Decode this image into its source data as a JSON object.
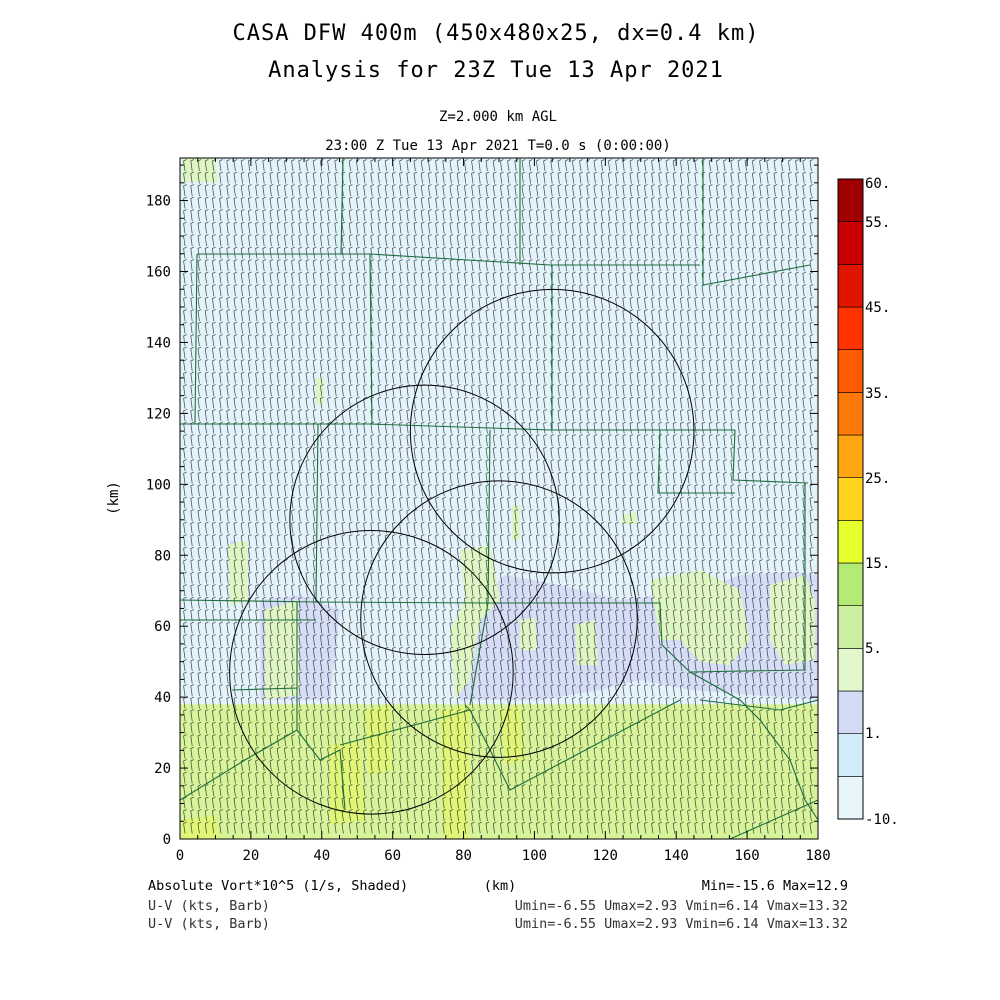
{
  "header": {
    "title_line1": "CASA DFW 400m (450x480x25, dx=0.4 km)",
    "title_line2": "Analysis for 23Z Tue 13 Apr 2021",
    "level": "Z=2.000 km AGL",
    "time": "23:00 Z Tue 13 Apr 2021   T=0.0 s (0:00:00)"
  },
  "footer": {
    "field_label": "Absolute Vort*10^5 (1/s, Shaded)",
    "xunit": "(km)",
    "minmax": "Min=-15.6 Max=12.9",
    "wind_label_1": "U-V (kts, Barb)",
    "wind_stats_1": "Umin=-6.55 Umax=2.93 Vmin=6.14 Vmax=13.32",
    "wind_label_2": "U-V (kts, Barb)",
    "wind_stats_2": "Umin=-6.55 Umax=2.93 Vmin=6.14 Vmax=13.32"
  },
  "colorbar": {
    "tick_labels": [
      "60.",
      "55.",
      "45.",
      "35.",
      "25.",
      "15.",
      "5.",
      "1.",
      "-10."
    ],
    "colors": [
      "#e6f6fb",
      "#d3ecfa",
      "#d2daf5",
      "#e1f7cc",
      "#cdf0a0",
      "#b4eb76",
      "#e6ff2c",
      "#ffd21e",
      "#ffa614",
      "#ff780a",
      "#ff5a00",
      "#ff3200",
      "#e11400",
      "#c80000",
      "#a00000"
    ]
  },
  "chart_data": {
    "type": "heatmap",
    "title": "CASA DFW 400m (450x480x25, dx=0.4 km)",
    "subtitle": "Analysis for 23Z Tue 13 Apr 2021",
    "xlabel": "(km)",
    "ylabel": "(km)",
    "xlim": [
      0,
      180
    ],
    "ylim": [
      0,
      192
    ],
    "xticks": [
      "0",
      "20",
      "40",
      "60",
      "80",
      "100",
      "120",
      "140",
      "160",
      "180"
    ],
    "yticks": [
      "0",
      "20",
      "40",
      "60",
      "80",
      "100",
      "120",
      "140",
      "160",
      "180"
    ],
    "field": "Absolute Vort*10^5 (1/s, Shaded)",
    "min": -15.6,
    "max": 12.9,
    "colorbar_levels": [
      -10,
      1,
      5,
      15,
      25,
      35,
      45,
      55,
      60
    ],
    "shaded_regions": [
      {
        "level": "light-blue",
        "y_range": [
          38,
          192
        ],
        "x_range": [
          0,
          180
        ]
      },
      {
        "level": "yellow-green",
        "y_range": [
          0,
          38
        ],
        "x_range": [
          0,
          180
        ]
      },
      {
        "level": "lavender",
        "y_range": [
          40,
          75
        ],
        "x_range": [
          95,
          180
        ]
      }
    ],
    "radar_rings": [
      {
        "center": [
          105,
          115
        ],
        "radius_km": 40
      },
      {
        "center": [
          69,
          90
        ],
        "radius_km": 38
      },
      {
        "center": [
          90,
          62
        ],
        "radius_km": 39
      },
      {
        "center": [
          54,
          47
        ],
        "radius_km": 40
      }
    ],
    "wind_barbs": {
      "u_range": [
        -6.55,
        2.93
      ],
      "v_range": [
        6.14,
        13.32
      ],
      "units": "kts"
    },
    "legend": "right"
  }
}
